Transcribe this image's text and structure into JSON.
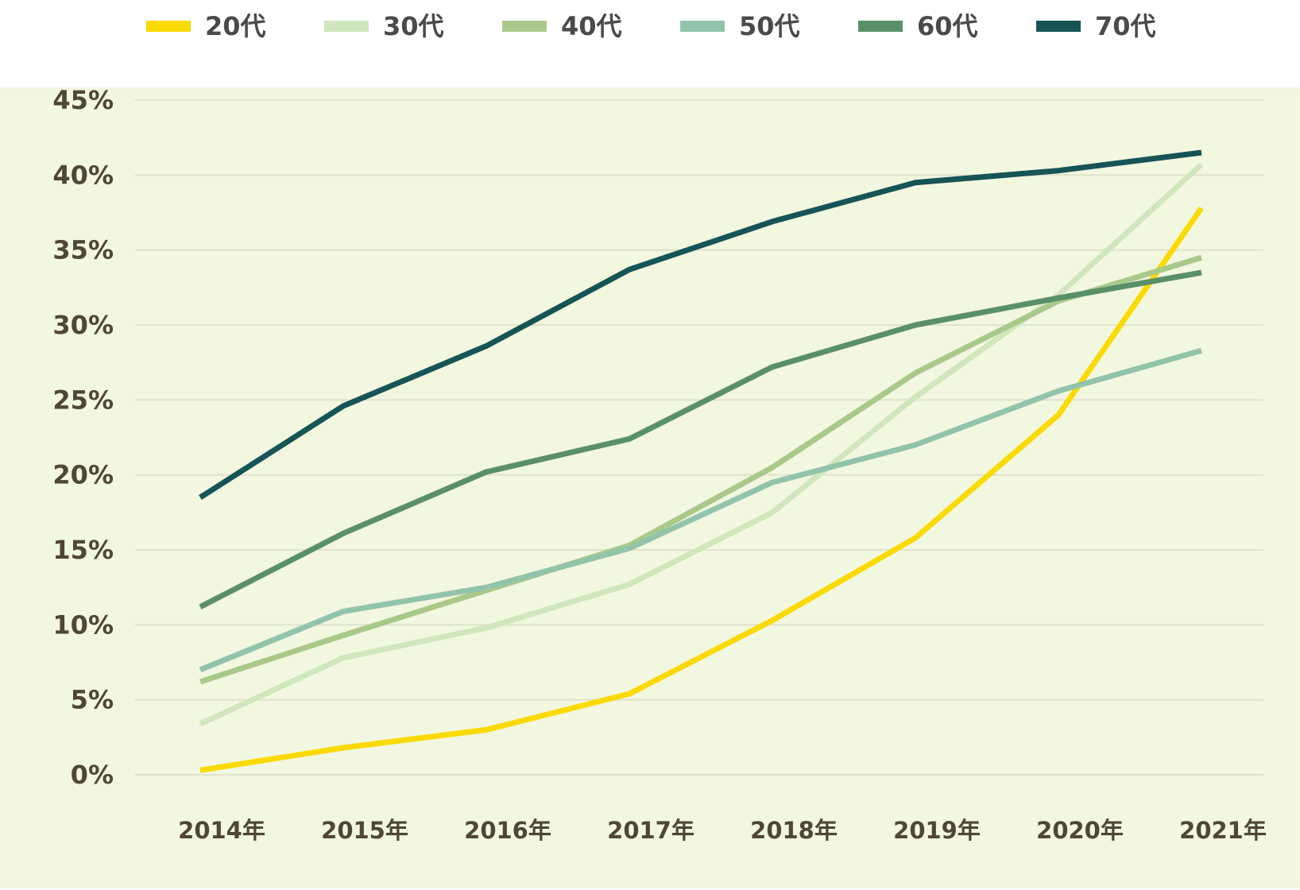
{
  "chart_data": {
    "type": "line",
    "title": "",
    "xlabel": "",
    "ylabel": "",
    "categories": [
      "2014年",
      "2015年",
      "2016年",
      "2017年",
      "2018年",
      "2019年",
      "2020年",
      "2021年"
    ],
    "y_ticks": [
      "0%",
      "5%",
      "10%",
      "15%",
      "20%",
      "25%",
      "30%",
      "35%",
      "40%",
      "45%"
    ],
    "ylim": [
      0,
      45
    ],
    "grid": true,
    "legend_position": "top",
    "series": [
      {
        "name": "20代",
        "color": "#fada00",
        "values": [
          0.3,
          1.8,
          3.0,
          5.4,
          10.3,
          15.8,
          24.0,
          37.8
        ]
      },
      {
        "name": "30代",
        "color": "#d0e6bd",
        "values": [
          3.4,
          7.8,
          9.8,
          12.7,
          17.5,
          25.2,
          32.0,
          40.7
        ]
      },
      {
        "name": "40代",
        "color": "#a9c98b",
        "values": [
          6.2,
          9.3,
          12.3,
          15.3,
          20.5,
          26.8,
          31.6,
          34.5
        ]
      },
      {
        "name": "50代",
        "color": "#92c4ab",
        "values": [
          7.0,
          10.9,
          12.5,
          15.1,
          19.5,
          22.0,
          25.6,
          28.3
        ]
      },
      {
        "name": "60代",
        "color": "#5a9068",
        "values": [
          11.2,
          16.1,
          20.2,
          22.4,
          27.2,
          30.0,
          31.8,
          33.5
        ]
      },
      {
        "name": "70代",
        "color": "#165456",
        "values": [
          18.5,
          24.6,
          28.6,
          33.7,
          36.9,
          39.5,
          40.3,
          41.5
        ]
      }
    ]
  },
  "style": {
    "plot_background": "#f2f7df",
    "gridline_color": "#dfe3cc",
    "tick_label_color": "#4f4538"
  }
}
